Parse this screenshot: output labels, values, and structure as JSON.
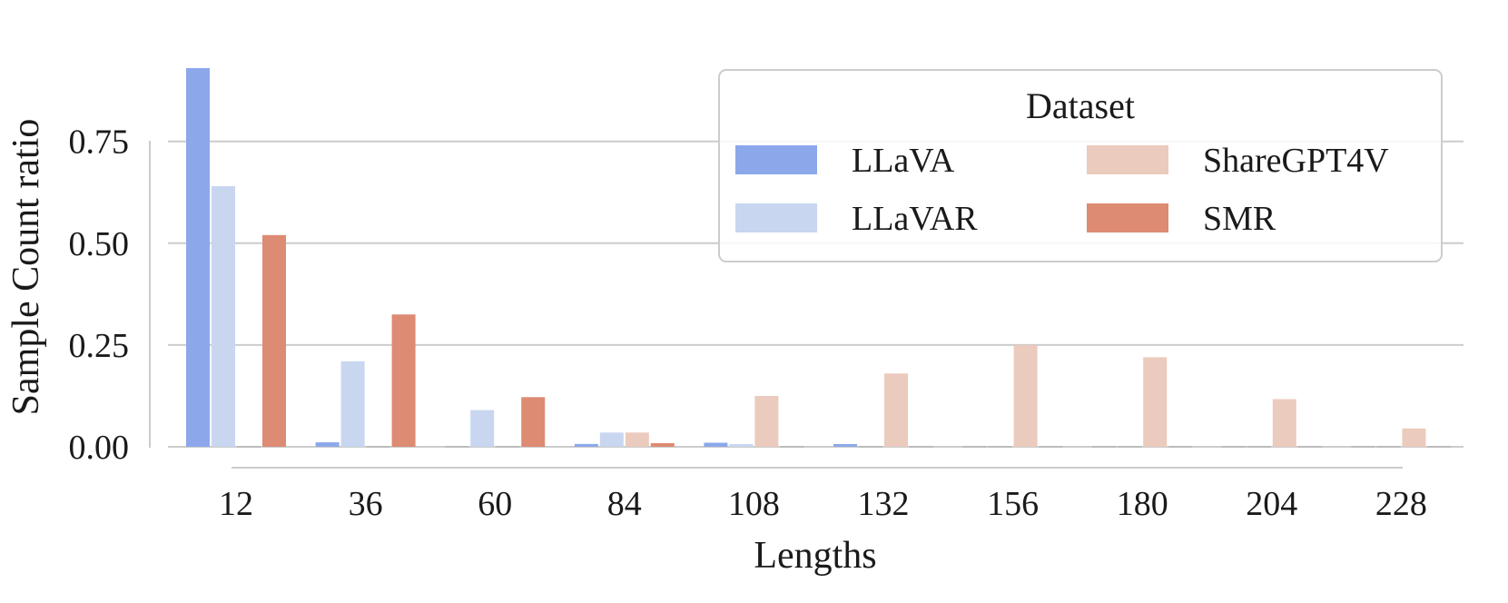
{
  "chart_data": {
    "type": "bar",
    "xlabel": "Lengths",
    "ylabel": "Sample Count ratio",
    "x_tick_labels": [
      "12",
      "36",
      "60",
      "84",
      "108",
      "132",
      "156",
      "180",
      "204",
      "228"
    ],
    "y_tick_labels": [
      "0.00",
      "0.25",
      "0.50",
      "0.75"
    ],
    "y_ticks": [
      0,
      0.25,
      0.5,
      0.75
    ],
    "ylim": [
      0,
      0.93
    ],
    "grid": "horizontal",
    "legend": {
      "title": "Dataset",
      "placement": "top-right"
    },
    "series": [
      {
        "name": "LLaVA",
        "color": "#8ca8eb",
        "values": [
          0.93,
          0.011,
          0.0,
          0.007,
          0.01,
          0.004,
          0.0,
          0.0,
          0.0,
          0.0
        ]
      },
      {
        "name": "LLaVAR",
        "color": "#c8d6f0",
        "values": [
          0.64,
          0.21,
          0.09,
          0.035,
          0.005,
          0.0,
          0.0,
          0.0,
          0.0,
          0.0
        ]
      },
      {
        "name": "ShareGPT4V",
        "color": "#ebcbbd",
        "values": [
          0.0,
          0.0,
          0.0,
          0.035,
          0.125,
          0.18,
          0.25,
          0.22,
          0.117,
          0.045
        ]
      },
      {
        "name": "SMR",
        "color": "#dd8b72",
        "values": [
          0.52,
          0.325,
          0.122,
          0.009,
          0.0,
          0.0,
          0.0,
          0.0,
          0.0,
          0.0
        ]
      }
    ]
  }
}
